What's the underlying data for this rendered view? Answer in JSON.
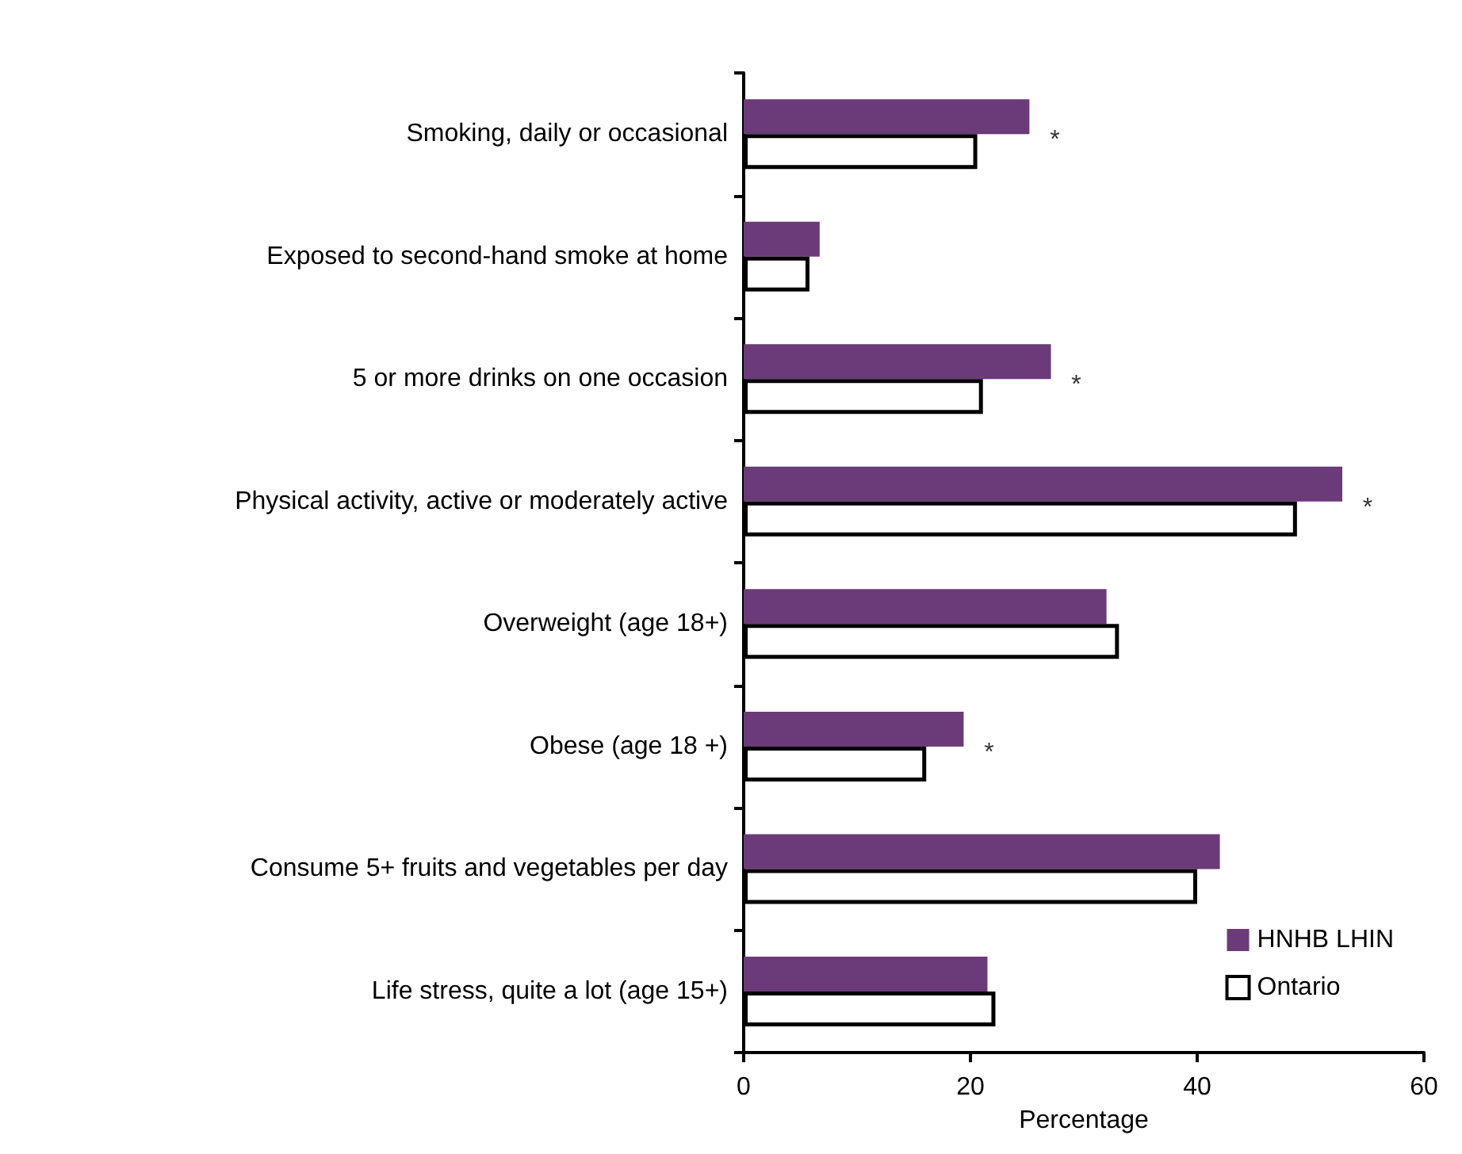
{
  "chart_data": {
    "type": "bar",
    "orientation": "horizontal",
    "xlabel": "Percentage",
    "categories": [
      "Smoking, daily or occasional",
      "Exposed to second-hand smoke at home",
      "5 or more drinks on one occasion",
      "Physical activity, active or moderately active",
      "Overweight (age 18+)",
      "Obese (age 18 +)",
      "Consume 5+ fruits and vegetables per day",
      "Life stress, quite a lot (age 15+)"
    ],
    "series": [
      {
        "name": "HNHB LHIN",
        "color": "#6b3a78",
        "values": [
          25.2,
          6.7,
          27.1,
          52.8,
          32.0,
          19.4,
          42.0,
          21.5
        ]
      },
      {
        "name": "Ontario",
        "color": "#ffffff",
        "values": [
          20.6,
          5.8,
          21.1,
          48.8,
          33.1,
          16.1,
          40.0,
          22.2
        ]
      }
    ],
    "xlim": [
      0,
      60
    ],
    "xticks": [
      0,
      20,
      40,
      60
    ],
    "grid": false,
    "legend": "bottom right",
    "annotations": [
      {
        "text": "*",
        "x": 25.2,
        "y": "Smoking, daily or occasional"
      },
      {
        "text": "*",
        "x": 27.1,
        "y": "5 or more drinks on one occasion"
      },
      {
        "text": "*",
        "x": 52.8,
        "y": "Physical activity, active or moderately active"
      },
      {
        "text": "*",
        "x": 19.4,
        "y": "Obese (age 18 +)"
      }
    ]
  }
}
